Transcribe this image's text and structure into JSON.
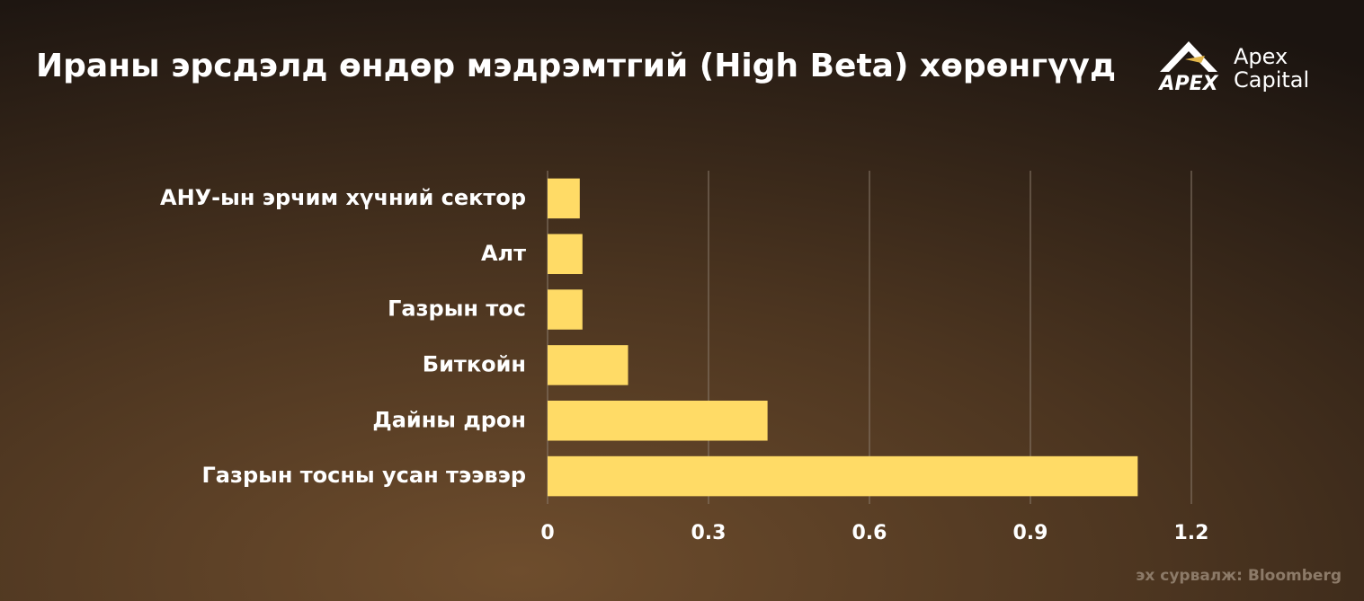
{
  "chart_data": {
    "type": "bar",
    "orientation": "horizontal",
    "title": "Ираны эрсдэлд өндөр мэдрэмтгий (High Beta) хөрөнгүүд",
    "categories": [
      "АНУ-ын эрчим хүчний сектор",
      "Алт",
      "Газрын тос",
      "Биткойн",
      "Дайны дрон",
      "Газрын тосны усан тээвэр"
    ],
    "values": [
      0.06,
      0.065,
      0.065,
      0.15,
      0.41,
      1.1
    ],
    "color": "#ffdb66",
    "xlim": [
      0,
      1.2
    ],
    "xticks": [
      0,
      0.3,
      0.6,
      0.9,
      1.2
    ],
    "grid": true
  },
  "logo": {
    "mark": "APEX",
    "name_line1": "Apex",
    "name_line2": "Capital"
  },
  "source": "эх сурвалж: Bloomberg"
}
